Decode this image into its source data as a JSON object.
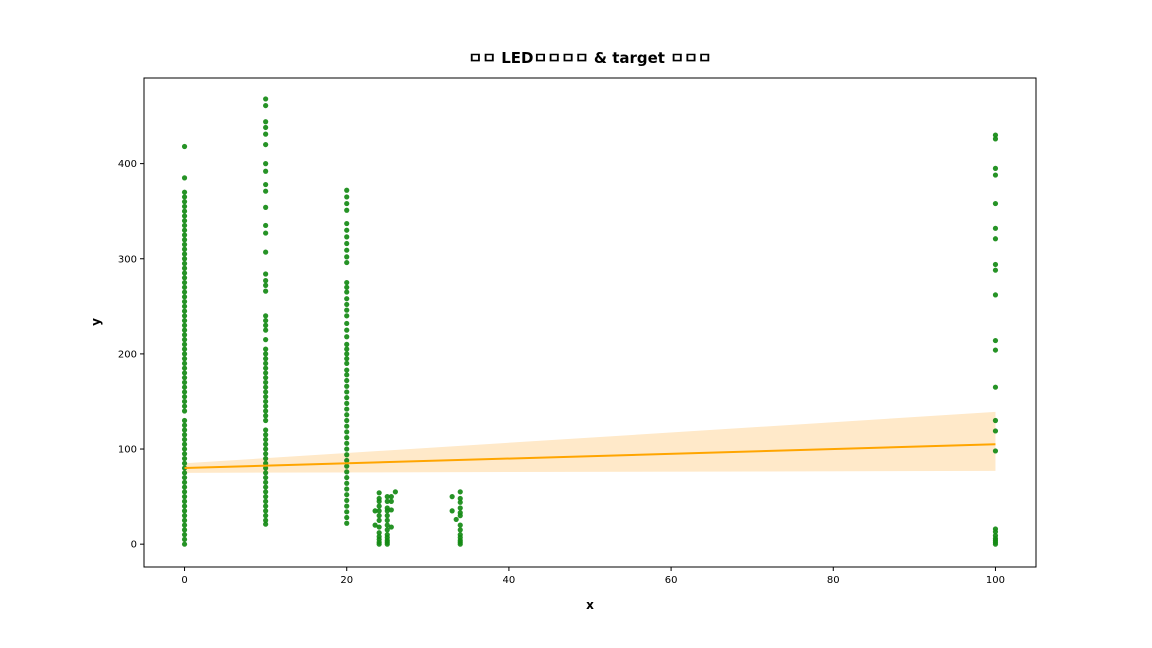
{
  "chart_data": {
    "type": "scatter",
    "title": "ㅁㅁ LEDㅁㅁㅁㅁ & target ㅁㅁㅁ",
    "xlabel": "x",
    "ylabel": "y",
    "xlim": [
      -5,
      105
    ],
    "ylim": [
      -24,
      490
    ],
    "xticks": [
      0,
      20,
      40,
      60,
      80,
      100
    ],
    "yticks": [
      0,
      100,
      200,
      300,
      400
    ],
    "grid": false,
    "legend": "none",
    "colors": {
      "points": "#138a13",
      "regression_line": "#ffa500",
      "confidence_band": "#ffe9c9"
    },
    "regression": {
      "x": [
        0,
        100
      ],
      "y": [
        80,
        105
      ],
      "ci_lower": [
        75,
        77
      ],
      "ci_upper": [
        85,
        139
      ]
    },
    "series": [
      {
        "points": [
          [
            0,
            418
          ],
          [
            0,
            385
          ],
          [
            0,
            370
          ],
          [
            0,
            365
          ],
          [
            0,
            360
          ],
          [
            0,
            355
          ],
          [
            0,
            350
          ],
          [
            0,
            345
          ],
          [
            0,
            340
          ],
          [
            0,
            335
          ],
          [
            0,
            330
          ],
          [
            0,
            325
          ],
          [
            0,
            320
          ],
          [
            0,
            315
          ],
          [
            0,
            310
          ],
          [
            0,
            305
          ],
          [
            0,
            300
          ],
          [
            0,
            295
          ],
          [
            0,
            290
          ],
          [
            0,
            285
          ],
          [
            0,
            280
          ],
          [
            0,
            275
          ],
          [
            0,
            270
          ],
          [
            0,
            265
          ],
          [
            0,
            260
          ],
          [
            0,
            255
          ],
          [
            0,
            250
          ],
          [
            0,
            245
          ],
          [
            0,
            240
          ],
          [
            0,
            235
          ],
          [
            0,
            230
          ],
          [
            0,
            225
          ],
          [
            0,
            220
          ],
          [
            0,
            215
          ],
          [
            0,
            210
          ],
          [
            0,
            205
          ],
          [
            0,
            200
          ],
          [
            0,
            195
          ],
          [
            0,
            190
          ],
          [
            0,
            185
          ],
          [
            0,
            180
          ],
          [
            0,
            175
          ],
          [
            0,
            170
          ],
          [
            0,
            165
          ],
          [
            0,
            160
          ],
          [
            0,
            155
          ],
          [
            0,
            150
          ],
          [
            0,
            145
          ],
          [
            0,
            140
          ],
          [
            0,
            130
          ],
          [
            0,
            125
          ],
          [
            0,
            120
          ],
          [
            0,
            115
          ],
          [
            0,
            110
          ],
          [
            0,
            105
          ],
          [
            0,
            100
          ],
          [
            0,
            95
          ],
          [
            0,
            90
          ],
          [
            0,
            85
          ],
          [
            0,
            80
          ],
          [
            0,
            75
          ],
          [
            0,
            70
          ],
          [
            0,
            65
          ],
          [
            0,
            60
          ],
          [
            0,
            55
          ],
          [
            0,
            50
          ],
          [
            0,
            45
          ],
          [
            0,
            40
          ],
          [
            0,
            35
          ],
          [
            0,
            30
          ],
          [
            0,
            25
          ],
          [
            0,
            20
          ],
          [
            0,
            15
          ],
          [
            0,
            10
          ],
          [
            0,
            5
          ],
          [
            0,
            0
          ],
          [
            10,
            468
          ],
          [
            10,
            461
          ],
          [
            10,
            444
          ],
          [
            10,
            438
          ],
          [
            10,
            431
          ],
          [
            10,
            420
          ],
          [
            10,
            400
          ],
          [
            10,
            392
          ],
          [
            10,
            378
          ],
          [
            10,
            371
          ],
          [
            10,
            354
          ],
          [
            10,
            335
          ],
          [
            10,
            327
          ],
          [
            10,
            307
          ],
          [
            10,
            284
          ],
          [
            10,
            277
          ],
          [
            10,
            272
          ],
          [
            10,
            266
          ],
          [
            10,
            240
          ],
          [
            10,
            235
          ],
          [
            10,
            230
          ],
          [
            10,
            225
          ],
          [
            10,
            215
          ],
          [
            10,
            205
          ],
          [
            10,
            200
          ],
          [
            10,
            195
          ],
          [
            10,
            190
          ],
          [
            10,
            185
          ],
          [
            10,
            180
          ],
          [
            10,
            175
          ],
          [
            10,
            170
          ],
          [
            10,
            165
          ],
          [
            10,
            160
          ],
          [
            10,
            155
          ],
          [
            10,
            150
          ],
          [
            10,
            145
          ],
          [
            10,
            140
          ],
          [
            10,
            135
          ],
          [
            10,
            130
          ],
          [
            10,
            120
          ],
          [
            10,
            115
          ],
          [
            10,
            110
          ],
          [
            10,
            105
          ],
          [
            10,
            100
          ],
          [
            10,
            95
          ],
          [
            10,
            90
          ],
          [
            10,
            85
          ],
          [
            10,
            80
          ],
          [
            10,
            75
          ],
          [
            10,
            70
          ],
          [
            10,
            65
          ],
          [
            10,
            60
          ],
          [
            10,
            55
          ],
          [
            10,
            50
          ],
          [
            10,
            45
          ],
          [
            10,
            40
          ],
          [
            10,
            35
          ],
          [
            10,
            30
          ],
          [
            10,
            25
          ],
          [
            10,
            21
          ],
          [
            20,
            372
          ],
          [
            20,
            365
          ],
          [
            20,
            358
          ],
          [
            20,
            351
          ],
          [
            20,
            337
          ],
          [
            20,
            330
          ],
          [
            20,
            323
          ],
          [
            20,
            316
          ],
          [
            20,
            309
          ],
          [
            20,
            302
          ],
          [
            20,
            296
          ],
          [
            20,
            275
          ],
          [
            20,
            270
          ],
          [
            20,
            265
          ],
          [
            20,
            258
          ],
          [
            20,
            252
          ],
          [
            20,
            246
          ],
          [
            20,
            240
          ],
          [
            20,
            232
          ],
          [
            20,
            225
          ],
          [
            20,
            218
          ],
          [
            20,
            210
          ],
          [
            20,
            205
          ],
          [
            20,
            200
          ],
          [
            20,
            195
          ],
          [
            20,
            190
          ],
          [
            20,
            183
          ],
          [
            20,
            178
          ],
          [
            20,
            172
          ],
          [
            20,
            166
          ],
          [
            20,
            160
          ],
          [
            20,
            154
          ],
          [
            20,
            148
          ],
          [
            20,
            142
          ],
          [
            20,
            136
          ],
          [
            20,
            130
          ],
          [
            20,
            124
          ],
          [
            20,
            118
          ],
          [
            20,
            112
          ],
          [
            20,
            106
          ],
          [
            20,
            100
          ],
          [
            20,
            94
          ],
          [
            20,
            88
          ],
          [
            20,
            82
          ],
          [
            20,
            76
          ],
          [
            20,
            70
          ],
          [
            20,
            64
          ],
          [
            20,
            58
          ],
          [
            20,
            52
          ],
          [
            20,
            46
          ],
          [
            20,
            40
          ],
          [
            20,
            34
          ],
          [
            20,
            28
          ],
          [
            20,
            22
          ],
          [
            24,
            54
          ],
          [
            24,
            48
          ],
          [
            24,
            45
          ],
          [
            24,
            40
          ],
          [
            24,
            35
          ],
          [
            23.5,
            35
          ],
          [
            24,
            30
          ],
          [
            23.5,
            20
          ],
          [
            24,
            25
          ],
          [
            24,
            18
          ],
          [
            24,
            12
          ],
          [
            24,
            8
          ],
          [
            24,
            5
          ],
          [
            24,
            2
          ],
          [
            24,
            0
          ],
          [
            25,
            50
          ],
          [
            25,
            45
          ],
          [
            25,
            38
          ],
          [
            25,
            35
          ],
          [
            25,
            30
          ],
          [
            25,
            25
          ],
          [
            25,
            20
          ],
          [
            25,
            15
          ],
          [
            25,
            10
          ],
          [
            25,
            7
          ],
          [
            25,
            4
          ],
          [
            25,
            2
          ],
          [
            25,
            0
          ],
          [
            25.5,
            50
          ],
          [
            25.5,
            45
          ],
          [
            25.5,
            36
          ],
          [
            25.5,
            18
          ],
          [
            26,
            55
          ],
          [
            33,
            50
          ],
          [
            33,
            35
          ],
          [
            33.5,
            26
          ],
          [
            34,
            55
          ],
          [
            34,
            48
          ],
          [
            34,
            44
          ],
          [
            34,
            38
          ],
          [
            34,
            33
          ],
          [
            34,
            30
          ],
          [
            34,
            20
          ],
          [
            34,
            15
          ],
          [
            34,
            10
          ],
          [
            34,
            7
          ],
          [
            34,
            4
          ],
          [
            34,
            2
          ],
          [
            34,
            0
          ],
          [
            100,
            430
          ],
          [
            100,
            426
          ],
          [
            100,
            395
          ],
          [
            100,
            388
          ],
          [
            100,
            358
          ],
          [
            100,
            332
          ],
          [
            100,
            321
          ],
          [
            100,
            294
          ],
          [
            100,
            288
          ],
          [
            100,
            262
          ],
          [
            100,
            214
          ],
          [
            100,
            204
          ],
          [
            100,
            165
          ],
          [
            100,
            130
          ],
          [
            100,
            119
          ],
          [
            100,
            98
          ],
          [
            100,
            16
          ],
          [
            100,
            13
          ],
          [
            100,
            9
          ],
          [
            100,
            6
          ],
          [
            100,
            4
          ],
          [
            100,
            2
          ],
          [
            100,
            0
          ]
        ]
      }
    ]
  }
}
